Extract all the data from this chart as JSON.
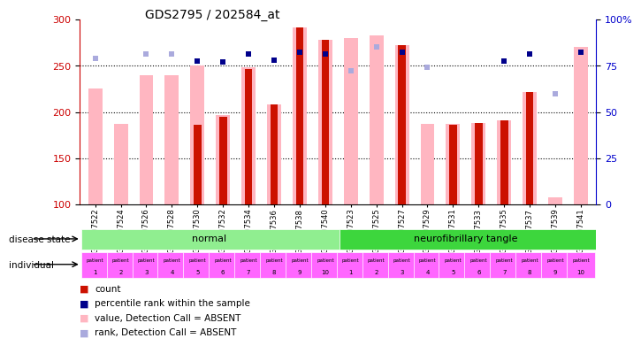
{
  "title": "GDS2795 / 202584_at",
  "samples": [
    "GSM107522",
    "GSM107524",
    "GSM107526",
    "GSM107528",
    "GSM107530",
    "GSM107532",
    "GSM107534",
    "GSM107536",
    "GSM107538",
    "GSM107540",
    "GSM107523",
    "GSM107525",
    "GSM107527",
    "GSM107529",
    "GSM107531",
    "GSM107533",
    "GSM107535",
    "GSM107537",
    "GSM107539",
    "GSM107541"
  ],
  "pink_bar_heights": [
    225,
    187,
    240,
    240,
    250,
    197,
    248,
    208,
    291,
    278,
    280,
    283,
    272,
    187,
    187,
    188,
    191,
    222,
    108,
    270
  ],
  "red_bar_heights": [
    0,
    0,
    0,
    0,
    186,
    195,
    246,
    208,
    291,
    278,
    0,
    0,
    272,
    0,
    186,
    188,
    191,
    222,
    0,
    0
  ],
  "dark_blue_sq_y": [
    null,
    null,
    null,
    null,
    255,
    254,
    263,
    256,
    265,
    263,
    null,
    null,
    265,
    null,
    null,
    null,
    255,
    263,
    null,
    265
  ],
  "light_blue_sq_y": [
    258,
    null,
    263,
    263,
    null,
    null,
    null,
    null,
    null,
    null,
    245,
    270,
    null,
    248,
    null,
    null,
    null,
    null,
    220,
    null
  ],
  "ylim_left": [
    100,
    300
  ],
  "ylim_right": [
    0,
    100
  ],
  "yticks_left": [
    100,
    150,
    200,
    250,
    300
  ],
  "yticks_right": [
    0,
    25,
    50,
    75,
    100
  ],
  "hlines": [
    150,
    200,
    250
  ],
  "normal_label": "normal",
  "tangle_label": "neurofibrillary tangle",
  "normal_color": "#90EE90",
  "tangle_color": "#3DD63D",
  "individual_color": "#FF66FF",
  "pink_color": "#FFB6C1",
  "red_color": "#CC1100",
  "dark_blue_color": "#00008B",
  "light_blue_color": "#AAAADD",
  "bg_color": "#FFFFFF",
  "left_axis_color": "#CC0000",
  "right_axis_color": "#0000CC"
}
